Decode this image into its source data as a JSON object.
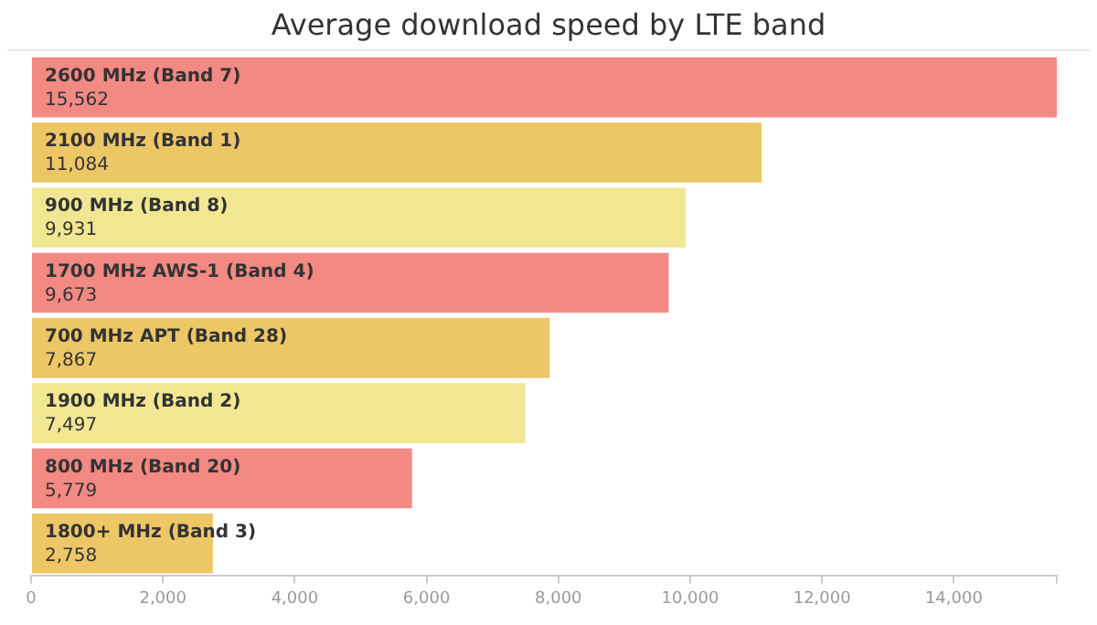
{
  "chart_data": {
    "type": "bar",
    "orientation": "horizontal",
    "title": "Average download speed by LTE band",
    "categories": [
      "2600 MHz (Band 7)",
      "2100 MHz (Band 1)",
      "900 MHz (Band 8)",
      "1700 MHz AWS-1 (Band 4)",
      "700 MHz APT (Band 28)",
      "1900 MHz (Band 2)",
      "800 MHz (Band 20)",
      "1800+ MHz (Band 3)"
    ],
    "values": [
      15562,
      11084,
      9931,
      9673,
      7867,
      7497,
      5779,
      2758
    ],
    "value_labels": [
      "15,562",
      "11,084",
      "9,931",
      "9,673",
      "7,867",
      "7,497",
      "5,779",
      "2,758"
    ],
    "colors": [
      "#f28983",
      "#edc666",
      "#f1e793",
      "#f28983",
      "#edc666",
      "#f1e793",
      "#f28983",
      "#edc666"
    ],
    "xlim": [
      0,
      15562
    ],
    "xticks": [
      0,
      {
        "value": 2000,
        "label": "2,000"
      },
      {
        "value": 4000,
        "label": "4,000"
      },
      {
        "value": 6000,
        "label": "6,000"
      },
      {
        "value": 8000,
        "label": "8,000"
      },
      {
        "value": 10000,
        "label": "10,000"
      },
      {
        "value": 12000,
        "label": "12,000"
      },
      {
        "value": 14000,
        "label": "14,000"
      },
      {
        "value": 15562,
        "label": null
      }
    ],
    "tick_labels": "x",
    "grid": false,
    "legend": false
  }
}
